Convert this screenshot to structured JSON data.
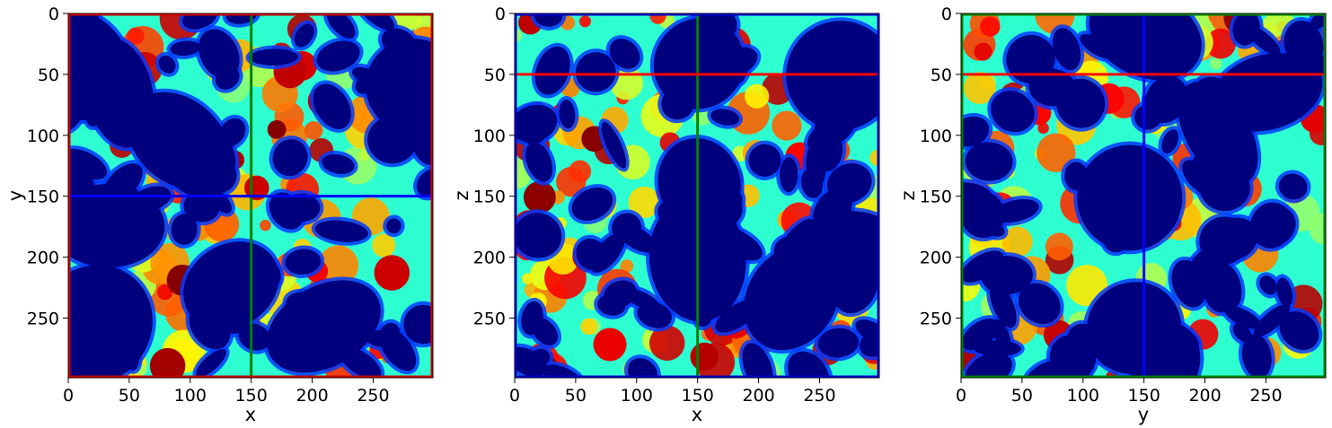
{
  "chart_data": [
    {
      "type": "heatmap",
      "title": "",
      "xlabel": "x",
      "ylabel": "y",
      "xlim": [
        0,
        299
      ],
      "ylim": [
        299,
        0
      ],
      "xticks": [
        0,
        50,
        100,
        150,
        200,
        250
      ],
      "yticks": [
        0,
        50,
        100,
        150,
        200,
        250
      ],
      "colormap": "jet",
      "frame_color": "#cc0000",
      "crosshairs": [
        {
          "orientation": "vertical",
          "value": 150,
          "color": "#008000"
        },
        {
          "orientation": "horizontal",
          "value": 150,
          "color": "#0000ff"
        }
      ]
    },
    {
      "type": "heatmap",
      "title": "",
      "xlabel": "x",
      "ylabel": "z",
      "xlim": [
        0,
        299
      ],
      "ylim": [
        299,
        0
      ],
      "xticks": [
        0,
        50,
        100,
        150,
        200,
        250
      ],
      "yticks": [
        0,
        50,
        100,
        150,
        200,
        250
      ],
      "colormap": "jet",
      "frame_color": "#0000cc",
      "crosshairs": [
        {
          "orientation": "vertical",
          "value": 150,
          "color": "#008000"
        },
        {
          "orientation": "horizontal",
          "value": 50,
          "color": "#ff0000"
        }
      ]
    },
    {
      "type": "heatmap",
      "title": "",
      "xlabel": "y",
      "ylabel": "z",
      "xlim": [
        0,
        299
      ],
      "ylim": [
        299,
        0
      ],
      "xticks": [
        0,
        50,
        100,
        150,
        200,
        250
      ],
      "yticks": [
        0,
        50,
        100,
        150,
        200,
        250
      ],
      "colormap": "jet",
      "frame_color": "#008000",
      "crosshairs": [
        {
          "orientation": "vertical",
          "value": 150,
          "color": "#0000ff"
        },
        {
          "orientation": "horizontal",
          "value": 50,
          "color": "#ff0000"
        }
      ]
    }
  ]
}
